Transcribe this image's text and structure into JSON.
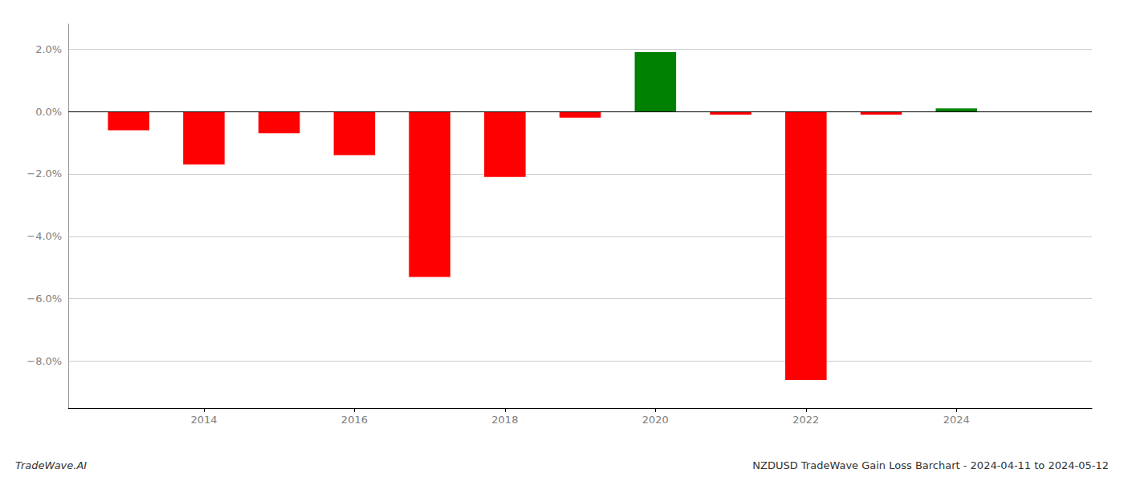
{
  "chart_data": {
    "type": "bar",
    "title": "NZDUSD TradeWave Gain Loss Barchart - 2024-04-11 to 2024-05-12",
    "annotations": [
      "TradeWave.AI"
    ],
    "x": [
      2013,
      2014,
      2015,
      2016,
      2017,
      2018,
      2019,
      2020,
      2021,
      2022,
      2023,
      2024
    ],
    "values": [
      -0.006,
      -0.017,
      -0.007,
      -0.014,
      -0.053,
      -0.021,
      -0.002,
      0.019,
      -0.001,
      -0.086,
      -0.001,
      0.001
    ],
    "colors": [
      "#ff0000",
      "#ff0000",
      "#ff0000",
      "#ff0000",
      "#ff0000",
      "#ff0000",
      "#ff0000",
      "#008000",
      "#ff0000",
      "#ff0000",
      "#ff0000",
      "#008000"
    ],
    "xlim": [
      2012.2,
      2025.8
    ],
    "xticks": [
      2014,
      2016,
      2018,
      2020,
      2022,
      2024
    ],
    "ylim": [
      -0.095,
      0.028
    ],
    "yticks": [
      {
        "value": -0.08,
        "label": "−8.0%"
      },
      {
        "value": -0.06,
        "label": "−6.0%"
      },
      {
        "value": -0.04,
        "label": "−4.0%"
      },
      {
        "value": -0.02,
        "label": "−2.0%"
      },
      {
        "value": 0,
        "label": "0.0%"
      },
      {
        "value": 0.02,
        "label": "2.0%"
      }
    ],
    "grid": true
  }
}
